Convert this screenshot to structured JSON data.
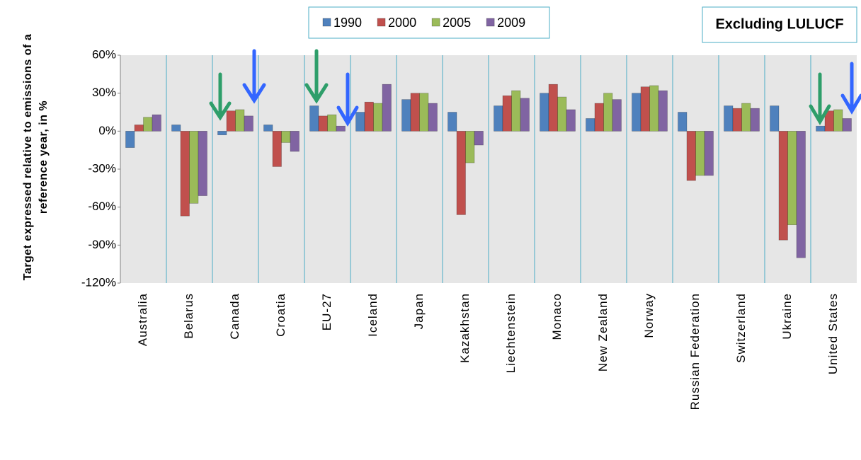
{
  "chart_data": {
    "type": "bar",
    "y_label": [
      "Target expressed relative to emissions of a",
      "reference year, in %"
    ],
    "annotation": "Excluding LULUCF",
    "categories": [
      "Australia",
      "Belarus",
      "Canada",
      "Croatia",
      "EU-27",
      "Iceland",
      "Japan",
      "Kazakhstan",
      "Liechtenstein",
      "Monaco",
      "New Zealand",
      "Norway",
      "Russian Federation",
      "Switzerland",
      "Ukraine",
      "United States"
    ],
    "series": [
      {
        "name": "1990",
        "color": "#4f81bd",
        "values": [
          -13,
          5,
          -3,
          5,
          20,
          15,
          25,
          15,
          20,
          30,
          10,
          30,
          15,
          20,
          20,
          4
        ]
      },
      {
        "name": "2000",
        "color": "#c0504d",
        "values": [
          5,
          -67,
          16,
          -28,
          12,
          23,
          30,
          -66,
          28,
          37,
          22,
          35,
          -39,
          18,
          -86,
          16
        ]
      },
      {
        "name": "2005",
        "color": "#9bbb59",
        "values": [
          11,
          -57,
          17,
          -9,
          13,
          22,
          30,
          -25,
          32,
          27,
          30,
          36,
          -35,
          22,
          -74,
          17
        ]
      },
      {
        "name": "2009",
        "color": "#8064a2",
        "values": [
          13,
          -51,
          12,
          -16,
          4,
          37,
          22,
          -11,
          26,
          17,
          25,
          32,
          -35,
          18,
          -100,
          10
        ]
      }
    ],
    "ylim": [
      -120,
      60
    ],
    "yticks": [
      {
        "value": -120,
        "label": "-120%"
      },
      {
        "value": -90,
        "label": "-90%"
      },
      {
        "value": -60,
        "label": "-60%"
      },
      {
        "value": -30,
        "label": "-30%"
      },
      {
        "value": 0,
        "label": "0%"
      },
      {
        "value": 30,
        "label": "30%"
      },
      {
        "value": 60,
        "label": "60%"
      }
    ],
    "grid": false
  }
}
